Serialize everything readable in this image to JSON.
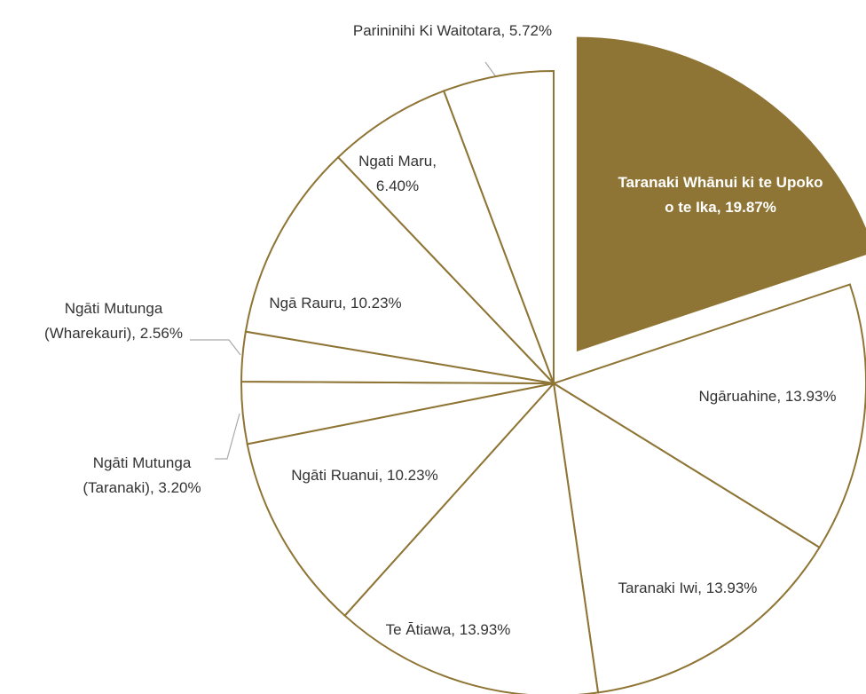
{
  "chart_data": {
    "type": "pie",
    "categories": [
      "Taranaki Whānui ki te Upoko o te Ika,",
      "Ngāruahine,",
      "Taranaki Iwi,",
      "Te Ātiawa,",
      "Ngāti Ruanui,",
      "Ngāti Mutunga (Taranaki),",
      "Ngāti Mutunga (Wharekauri),",
      "Ngā Rauru,",
      "Ngati Maru,",
      "Parininihi Ki Waitotara,"
    ],
    "values": [
      19.87,
      13.93,
      13.93,
      13.93,
      10.23,
      3.2,
      2.56,
      10.23,
      6.4,
      5.72
    ],
    "value_labels": [
      "19.87%",
      "13.93%",
      "13.93%",
      "13.93%",
      "10.23%",
      "3.20%",
      "2.56%",
      "10.23%",
      "6.40%",
      "5.72%"
    ],
    "colors": [
      "#8f7535",
      "#ffffff",
      "#ffffff",
      "#ffffff",
      "#ffffff",
      "#ffffff",
      "#ffffff",
      "#ffffff",
      "#ffffff",
      "#ffffff"
    ],
    "stroke": "#8f7535",
    "exploded": [
      0
    ]
  }
}
